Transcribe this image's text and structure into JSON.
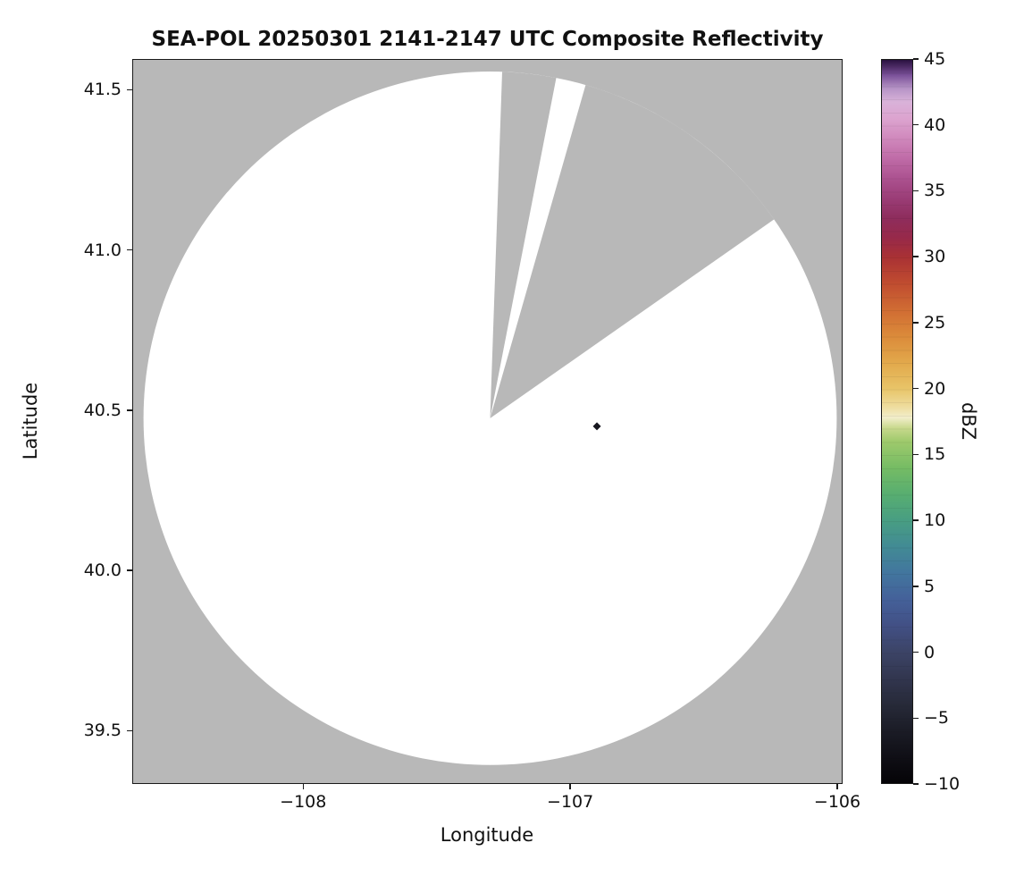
{
  "chart_data": {
    "type": "heatmap",
    "title": "SEA-POL 20250301 2141-2147 UTC Composite Reflectivity",
    "xlabel": "Longitude",
    "ylabel": "Latitude",
    "colorbar_label": "dBZ",
    "xlim": [
      -108.64,
      -105.98
    ],
    "ylim": [
      39.334,
      41.596
    ],
    "x_ticks": [
      -108,
      -107,
      -106
    ],
    "y_ticks": [
      41.5,
      41.0,
      40.5,
      40.0,
      39.5
    ],
    "colorbar_range": [
      -10,
      45
    ],
    "colorbar_ticks": [
      45,
      40,
      35,
      30,
      25,
      20,
      15,
      10,
      5,
      0,
      -5,
      -10
    ],
    "grid": false,
    "legend": "none",
    "nodata_color": "#b8b8b8",
    "coverage_color": "#ffffff",
    "radar": {
      "center_lon": -107.3,
      "center_lat": 40.475,
      "radius_lat_deg": 1.082,
      "blocked_sectors_deg": [
        [
          2,
          11
        ],
        [
          16,
          55
        ]
      ],
      "echo_point": {
        "lon": -106.9,
        "lat": 40.45,
        "color": "#17171f"
      }
    },
    "colormap": "ChaseSpectral-like",
    "colormap_stops": [
      {
        "v": -10,
        "c": "#050407"
      },
      {
        "v": -8,
        "c": "#100f16"
      },
      {
        "v": -6,
        "c": "#1b1c26"
      },
      {
        "v": -4,
        "c": "#272a39"
      },
      {
        "v": -2,
        "c": "#32364f"
      },
      {
        "v": 0,
        "c": "#3c4467"
      },
      {
        "v": 2,
        "c": "#425085"
      },
      {
        "v": 4,
        "c": "#44619a"
      },
      {
        "v": 6,
        "c": "#42769e"
      },
      {
        "v": 8,
        "c": "#428b94"
      },
      {
        "v": 10,
        "c": "#489e82"
      },
      {
        "v": 12,
        "c": "#58ae70"
      },
      {
        "v": 14,
        "c": "#76bc64"
      },
      {
        "v": 16,
        "c": "#9fca6c"
      },
      {
        "v": 17,
        "c": "#c8d98d"
      },
      {
        "v": 17.8,
        "c": "#f2eecb"
      },
      {
        "v": 18.6,
        "c": "#eedd9f"
      },
      {
        "v": 20,
        "c": "#e8c468"
      },
      {
        "v": 22,
        "c": "#e2a84b"
      },
      {
        "v": 24,
        "c": "#db8a3a"
      },
      {
        "v": 26,
        "c": "#d06c33"
      },
      {
        "v": 28,
        "c": "#c04c30"
      },
      {
        "v": 30,
        "c": "#a93134"
      },
      {
        "v": 31.5,
        "c": "#97294a"
      },
      {
        "v": 33,
        "c": "#8e2d5d"
      },
      {
        "v": 34.5,
        "c": "#9b3d77"
      },
      {
        "v": 36,
        "c": "#ac5290"
      },
      {
        "v": 37.5,
        "c": "#bf6ba7"
      },
      {
        "v": 39,
        "c": "#d088bc"
      },
      {
        "v": 40.5,
        "c": "#dca3cf"
      },
      {
        "v": 41.8,
        "c": "#d9b2d9"
      },
      {
        "v": 42.8,
        "c": "#b795c7"
      },
      {
        "v": 43.8,
        "c": "#7c539b"
      },
      {
        "v": 44.5,
        "c": "#4b2a63"
      },
      {
        "v": 45,
        "c": "#2a1140"
      }
    ]
  },
  "x_tick_labels": [
    "−108",
    "−107",
    "−106"
  ],
  "y_tick_labels": [
    "41.5",
    "41.0",
    "40.5",
    "40.0",
    "39.5"
  ],
  "cbar_tick_labels": [
    "45",
    "40",
    "35",
    "30",
    "25",
    "20",
    "15",
    "10",
    "5",
    "0",
    "−5",
    "−10"
  ]
}
